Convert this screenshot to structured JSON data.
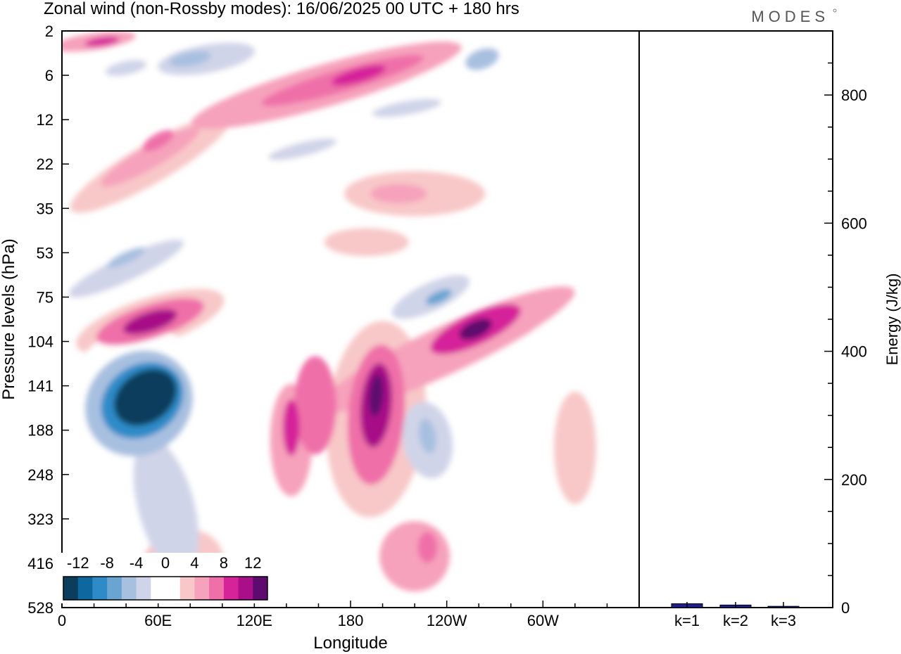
{
  "title": "Zonal wind (non-Rossby modes):  16/06/2025  00 UTC  + 180 hrs",
  "logo": "MODES",
  "chart_data": [
    {
      "type": "heatmap",
      "title": "Zonal wind (non-Rossby modes):  16/06/2025  00 UTC  + 180 hrs",
      "xlabel": "Longitude",
      "ylabel": "Pressure levels (hPa)",
      "x_ticks": [
        "0",
        "60E",
        "120E",
        "180",
        "120W",
        "60W"
      ],
      "y_ticks": [
        "2",
        "6",
        "12",
        "22",
        "35",
        "53",
        "75",
        "104",
        "141",
        "188",
        "248",
        "323",
        "416",
        "528"
      ],
      "colorbar": {
        "tick_labels": [
          "-12",
          "-8",
          "-4",
          "0",
          "4",
          "8",
          "12"
        ],
        "levels": [
          -14,
          -12,
          -10,
          -8,
          -6,
          -4,
          -2,
          0,
          2,
          4,
          6,
          8,
          10,
          12,
          14
        ],
        "colors": [
          "#0b3d5c",
          "#0f67a0",
          "#2e8bc8",
          "#6aa5d2",
          "#a8c0e0",
          "#d0d4e8",
          "#ffffff",
          "#ffffff",
          "#f8c8c8",
          "#f6a2bc",
          "#ef6fa8",
          "#d6239a",
          "#a80f88",
          "#5e0a6e"
        ]
      },
      "features": [
        {
          "name": "upper easterly band",
          "lon": 40,
          "level_hpa": 6,
          "value": -4
        },
        {
          "name": "upper westerly tilted band",
          "lon": 160,
          "level_hpa": 8,
          "value": 6
        },
        {
          "name": "westerly tilted band",
          "lon": 60,
          "level_hpa": 22,
          "value": 4
        },
        {
          "name": "easterly tilted band",
          "lon": 40,
          "level_hpa": 60,
          "value": -6
        },
        {
          "name": "westerly maximum",
          "lon": 55,
          "level_hpa": 90,
          "value": 10
        },
        {
          "name": "easterly jet core",
          "lon": 50,
          "level_hpa": 155,
          "value": -14
        },
        {
          "name": "westerly maximum",
          "lon": 196,
          "level_hpa": 160,
          "value": 12
        },
        {
          "name": "westerly maximum",
          "lon": 258,
          "level_hpa": 95,
          "value": 10
        },
        {
          "name": "easterly patch",
          "lon": 228,
          "level_hpa": 200,
          "value": -6
        },
        {
          "name": "easterly patch",
          "lon": 235,
          "level_hpa": 80,
          "value": -6
        },
        {
          "name": "westerly patch",
          "lon": 220,
          "level_hpa": 30,
          "value": 4
        }
      ]
    },
    {
      "type": "bar",
      "categories": [
        "k=1",
        "k=2",
        "k=3"
      ],
      "values": [
        6,
        4,
        2
      ],
      "ylabel": "Energy (J/kg)",
      "ylim": [
        0,
        900
      ],
      "y_ticks": [
        0,
        200,
        400,
        600,
        800
      ],
      "bar_color": "#1f1f8f"
    }
  ]
}
